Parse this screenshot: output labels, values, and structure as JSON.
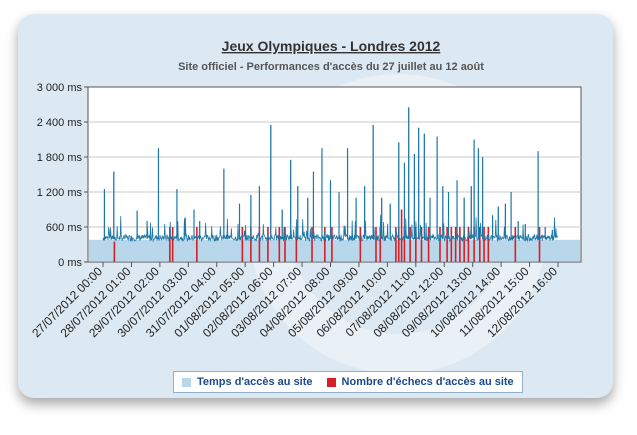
{
  "colors": {
    "line": "#1f77a8",
    "failure": "#d61f26",
    "band": "#b9d7ea",
    "grid": "#c8c8c8"
  },
  "chart_data": {
    "type": "line",
    "title": "Jeux Olympiques - Londres 2012",
    "subtitle": "Site officiel - Performances d'accès du 27 juillet au 12 août",
    "ylim": [
      0,
      3000
    ],
    "xlim": [
      0,
      16
    ],
    "y_ticks": [
      {
        "value": 0,
        "label": "0 ms"
      },
      {
        "value": 600,
        "label": "600 ms"
      },
      {
        "value": 1200,
        "label": "1 200 ms"
      },
      {
        "value": 1800,
        "label": "1 800 ms"
      },
      {
        "value": 2400,
        "label": "2 400 ms"
      },
      {
        "value": 3000,
        "label": "3 000 ms"
      }
    ],
    "x_ticks": [
      {
        "value": 0,
        "label": "27/07/2012 00:00"
      },
      {
        "value": 1,
        "label": "28/07/2012 01:00"
      },
      {
        "value": 2,
        "label": "29/07/2012 02:00"
      },
      {
        "value": 3,
        "label": "30/07/2012 03:00"
      },
      {
        "value": 4,
        "label": "31/07/2012 04:00"
      },
      {
        "value": 5,
        "label": "01/08/2012 05:00"
      },
      {
        "value": 6,
        "label": "02/08/2012 06:00"
      },
      {
        "value": 7,
        "label": "03/08/2012 07:00"
      },
      {
        "value": 8,
        "label": "04/08/2012 08:00"
      },
      {
        "value": 9,
        "label": "05/08/2012 09:00"
      },
      {
        "value": 10,
        "label": "06/08/2012 10:00"
      },
      {
        "value": 11,
        "label": "07/08/2012 11:00"
      },
      {
        "value": 12,
        "label": "08/08/2012 12:00"
      },
      {
        "value": 13,
        "label": "09/08/2012 13:00"
      },
      {
        "value": 14,
        "label": "10/08/2012 14:00"
      },
      {
        "value": 15,
        "label": "11/08/2012 15:00"
      },
      {
        "value": 16,
        "label": "12/08/2012 16:00"
      }
    ],
    "baseline": 400,
    "grid": true,
    "series": [
      {
        "name": "Temps d'accès au site",
        "type": "line",
        "spikes": [
          {
            "x": 0.05,
            "y": 1250
          },
          {
            "x": 0.38,
            "y": 1550
          },
          {
            "x": 1.2,
            "y": 880
          },
          {
            "x": 1.55,
            "y": 700
          },
          {
            "x": 1.95,
            "y": 1950
          },
          {
            "x": 2.6,
            "y": 1250
          },
          {
            "x": 3.2,
            "y": 900
          },
          {
            "x": 3.4,
            "y": 700
          },
          {
            "x": 4.25,
            "y": 1600
          },
          {
            "x": 4.8,
            "y": 1000
          },
          {
            "x": 5.2,
            "y": 1150
          },
          {
            "x": 5.5,
            "y": 1300
          },
          {
            "x": 5.9,
            "y": 2350
          },
          {
            "x": 6.3,
            "y": 900
          },
          {
            "x": 6.6,
            "y": 1750
          },
          {
            "x": 6.85,
            "y": 1300
          },
          {
            "x": 7.2,
            "y": 1100
          },
          {
            "x": 7.4,
            "y": 1550
          },
          {
            "x": 7.7,
            "y": 1950
          },
          {
            "x": 8.0,
            "y": 1400
          },
          {
            "x": 8.3,
            "y": 1200
          },
          {
            "x": 8.6,
            "y": 1950
          },
          {
            "x": 8.9,
            "y": 1100
          },
          {
            "x": 9.2,
            "y": 1300
          },
          {
            "x": 9.5,
            "y": 2350
          },
          {
            "x": 9.8,
            "y": 1100
          },
          {
            "x": 10.1,
            "y": 1000
          },
          {
            "x": 10.4,
            "y": 2050
          },
          {
            "x": 10.6,
            "y": 1700
          },
          {
            "x": 10.75,
            "y": 2650
          },
          {
            "x": 10.95,
            "y": 1850
          },
          {
            "x": 11.1,
            "y": 2300
          },
          {
            "x": 11.3,
            "y": 2200
          },
          {
            "x": 11.5,
            "y": 1100
          },
          {
            "x": 11.75,
            "y": 2150
          },
          {
            "x": 11.95,
            "y": 1300
          },
          {
            "x": 12.15,
            "y": 1200
          },
          {
            "x": 12.45,
            "y": 1400
          },
          {
            "x": 12.7,
            "y": 1100
          },
          {
            "x": 12.95,
            "y": 1300
          },
          {
            "x": 13.05,
            "y": 2100
          },
          {
            "x": 13.2,
            "y": 1950
          },
          {
            "x": 13.35,
            "y": 1800
          },
          {
            "x": 13.7,
            "y": 800
          },
          {
            "x": 13.9,
            "y": 950
          },
          {
            "x": 14.15,
            "y": 1000
          },
          {
            "x": 14.35,
            "y": 1200
          },
          {
            "x": 14.6,
            "y": 700
          },
          {
            "x": 14.85,
            "y": 650
          },
          {
            "x": 15.3,
            "y": 1900
          },
          {
            "x": 15.55,
            "y": 600
          },
          {
            "x": 15.8,
            "y": 550
          }
        ]
      },
      {
        "name": "Nombre d'échecs d'accès au site",
        "type": "bar",
        "x": [
          0.4,
          2.35,
          2.45,
          3.3,
          4.9,
          5.2,
          5.5,
          5.8,
          6.2,
          6.4,
          6.8,
          7.35,
          7.8,
          8.05,
          9.05,
          9.6,
          9.75,
          10.3,
          10.4,
          10.5,
          10.6,
          10.8,
          11.0,
          11.2,
          11.45,
          11.85,
          12.1,
          12.25,
          12.4,
          12.55,
          12.7,
          12.85,
          13.05,
          13.25,
          13.4,
          13.55,
          14.5,
          15.35
        ],
        "y": [
          350,
          600,
          600,
          600,
          600,
          600,
          600,
          600,
          600,
          600,
          600,
          600,
          600,
          600,
          600,
          600,
          600,
          600,
          600,
          900,
          600,
          600,
          600,
          600,
          600,
          600,
          600,
          600,
          600,
          600,
          600,
          600,
          600,
          600,
          600,
          600,
          600,
          600
        ]
      }
    ],
    "legend": {
      "position": "bottom"
    }
  }
}
